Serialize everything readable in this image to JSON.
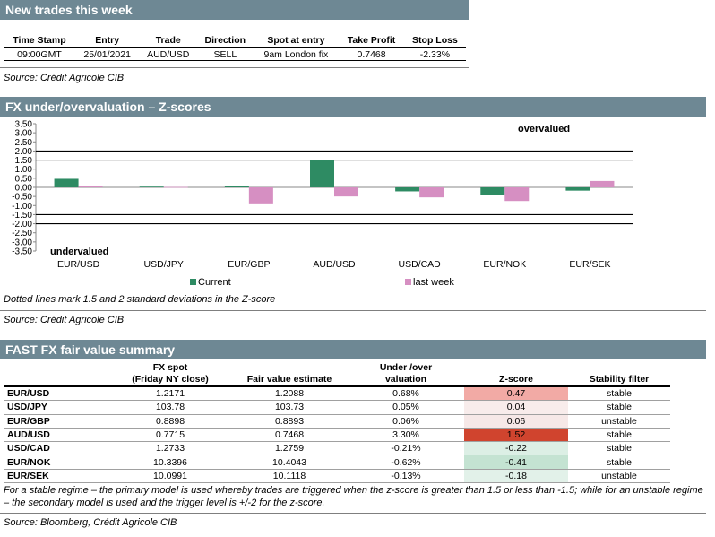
{
  "trades_section": {
    "title": "New trades this week",
    "headers": [
      "Time Stamp",
      "Entry",
      "Trade",
      "Direction",
      "Spot at entry",
      "Take Profit",
      "Stop Loss"
    ],
    "row": [
      "09:00GMT",
      "25/01/2021",
      "AUD/USD",
      "SELL",
      "9am London fix",
      "0.7468",
      "-2.33%"
    ],
    "source": "Source: Crédit Agricole CIB"
  },
  "chart_section": {
    "title": "FX under/overvaluation – Z-scores",
    "note": "Dotted lines mark 1.5 and 2 standard deviations in the Z-score",
    "source": "Source: Crédit Agricole CIB"
  },
  "chart_data": {
    "type": "bar",
    "categories": [
      "EUR/USD",
      "USD/JPY",
      "EUR/GBP",
      "AUD/USD",
      "USD/CAD",
      "EUR/NOK",
      "EUR/SEK"
    ],
    "series": [
      {
        "name": "Current",
        "values": [
          0.47,
          0.04,
          0.06,
          1.52,
          -0.22,
          -0.41,
          -0.18
        ],
        "color": "#2e8b63"
      },
      {
        "name": "last week",
        "values": [
          0.05,
          0.02,
          -0.88,
          -0.5,
          -0.55,
          -0.75,
          0.35
        ],
        "color": "#d68fc2"
      }
    ],
    "ylim": [
      -3.5,
      3.5
    ],
    "yticks": [
      "3.50",
      "3.00",
      "2.50",
      "2.00",
      "1.50",
      "1.00",
      "0.50",
      "0.00",
      "-0.50",
      "-1.00",
      "-1.50",
      "-2.00",
      "-2.50",
      "-3.00",
      "-3.50"
    ],
    "reference_lines": [
      2,
      1.5,
      -1.5,
      -2
    ],
    "annotations": {
      "top": "overvalued",
      "bottom": "undervalued"
    },
    "line_color": "#000000"
  },
  "summary_section": {
    "title": "FAST FX fair value summary",
    "headers": {
      "spot_l1": "FX spot",
      "spot_l2": "(Friday NY close)",
      "fair": "Fair value estimate",
      "uo_l1": "Under /over",
      "uo_l2": "valuation",
      "z": "Z-score",
      "stab": "Stability filter"
    },
    "rows": [
      {
        "pair": "EUR/USD",
        "spot": "1.2171",
        "fair": "1.2088",
        "uo": "0.68%",
        "z": "0.47",
        "zbg": "#f2aaa5",
        "stab": "stable"
      },
      {
        "pair": "USD/JPY",
        "spot": "103.78",
        "fair": "103.73",
        "uo": "0.05%",
        "z": "0.04",
        "zbg": "#f8eceb",
        "stab": "stable"
      },
      {
        "pair": "EUR/GBP",
        "spot": "0.8898",
        "fair": "0.8893",
        "uo": "0.06%",
        "z": "0.06",
        "zbg": "#f6e8e7",
        "stab": "unstable"
      },
      {
        "pair": "AUD/USD",
        "spot": "0.7715",
        "fair": "0.7468",
        "uo": "3.30%",
        "z": "1.52",
        "zbg": "#d0442e",
        "stab": "stable"
      },
      {
        "pair": "USD/CAD",
        "spot": "1.2733",
        "fair": "1.2759",
        "uo": "-0.21%",
        "z": "-0.22",
        "zbg": "#dcefe5",
        "stab": "stable"
      },
      {
        "pair": "EUR/NOK",
        "spot": "10.3396",
        "fair": "10.4043",
        "uo": "-0.62%",
        "z": "-0.41",
        "zbg": "#c4e3d2",
        "stab": "stable"
      },
      {
        "pair": "EUR/SEK",
        "spot": "10.0991",
        "fair": "10.1118",
        "uo": "-0.13%",
        "z": "-0.18",
        "zbg": "#e2f1e9",
        "stab": "unstable"
      }
    ],
    "note": "For a stable regime – the primary model is used whereby trades are triggered when the z-score is greater than 1.5 or less than -1.5; while for an unstable regime – the secondary model is used and the trigger level is +/-2 for the z-score.",
    "source": "Source: Bloomberg, Crédit Agricole CIB"
  }
}
